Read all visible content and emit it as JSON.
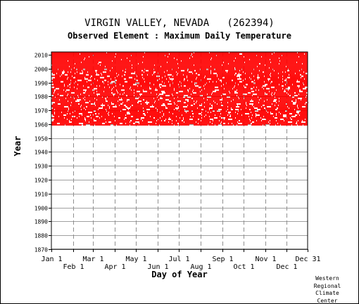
{
  "title": "VIRGIN VALLEY, NEVADA   (262394)",
  "subtitle": "Observed Element : Maximum Daily Temperature",
  "credit": [
    "Western",
    "Regional",
    "Climate",
    "Center"
  ],
  "chart_data": {
    "type": "heatmap",
    "xlabel": "Day of Year",
    "ylabel": "Year",
    "xlim": [
      1,
      365
    ],
    "ylim": [
      1870,
      2012
    ],
    "y_ticks": [
      1870,
      1880,
      1890,
      1900,
      1910,
      1920,
      1930,
      1940,
      1950,
      1960,
      1970,
      1980,
      1990,
      2000,
      2010
    ],
    "x_ticks_top_row": [
      {
        "label": "Jan 1",
        "day": 1
      },
      {
        "label": "Mar 1",
        "day": 60
      },
      {
        "label": "May 1",
        "day": 121
      },
      {
        "label": "Jul 1",
        "day": 182
      },
      {
        "label": "Sep 1",
        "day": 244
      },
      {
        "label": "Nov 1",
        "day": 305
      },
      {
        "label": "Dec 31",
        "day": 365
      }
    ],
    "x_ticks_bottom_row": [
      {
        "label": "Feb 1",
        "day": 32
      },
      {
        "label": "Apr 1",
        "day": 91
      },
      {
        "label": "Jun 1",
        "day": 152
      },
      {
        "label": "Aug 1",
        "day": 213
      },
      {
        "label": "Oct 1",
        "day": 274
      },
      {
        "label": "Dec 1",
        "day": 335
      }
    ],
    "grid": true,
    "mark_color": "#ff0000",
    "series": [
      {
        "year_start": 1959,
        "year_end": 2011,
        "observed_density": 0.85
      }
    ]
  }
}
